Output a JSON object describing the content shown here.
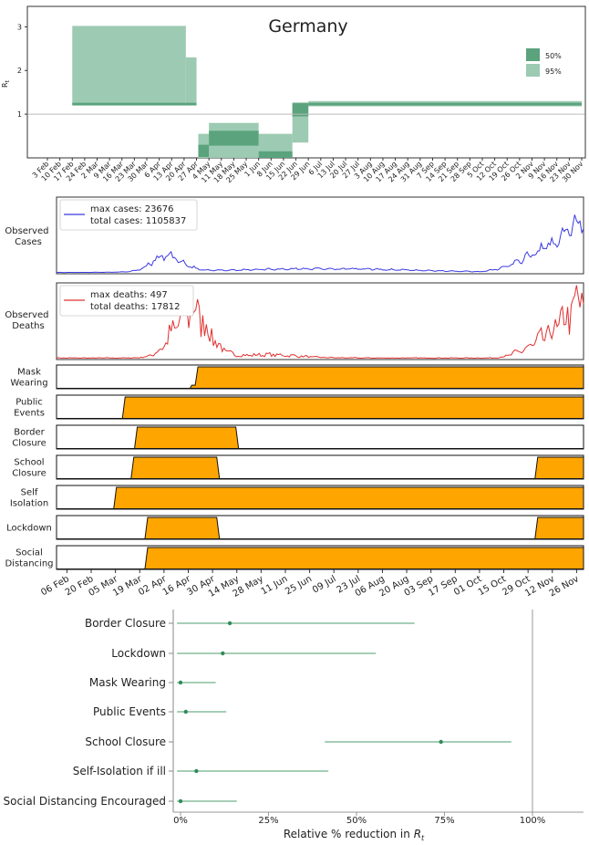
{
  "chart_data": [
    {
      "id": "rt",
      "type": "area",
      "title": "Germany",
      "ylabel": "R_t",
      "ylim": [
        0,
        3.3
      ],
      "yticks": [
        "1",
        "2",
        "3"
      ],
      "ytick_values": [
        1,
        2,
        3
      ],
      "grid": "horizontal line at 1",
      "legend_position": "top-right",
      "legend": [
        {
          "label": "50%",
          "color": "#5aa37d"
        },
        {
          "label": "95%",
          "color": "#9ccab2"
        }
      ],
      "x": [
        "3 Feb",
        "10 Feb",
        "17 Feb",
        "24 Feb",
        "2 Mar",
        "9 Mar",
        "16 Mar",
        "23 Mar",
        "30 Mar",
        "6 Apr",
        "13 Apr",
        "20 Apr",
        "27 Apr",
        "4 May",
        "11 May",
        "18 May",
        "25 May",
        "1 Jun",
        "8 Jun",
        "15 Jun",
        "22 Jun",
        "29 Jun",
        "6 Jul",
        "13 Jul",
        "20 Jul",
        "27 Jul",
        "3 Aug",
        "10 Aug",
        "17 Aug",
        "24 Aug",
        "31 Aug",
        "7 Sep",
        "14 Sep",
        "21 Sep",
        "28 Sep",
        "5 Oct",
        "12 Oct",
        "19 Oct",
        "26 Oct",
        "2 Nov",
        "9 Nov",
        "16 Nov",
        "23 Nov",
        "30 Nov"
      ],
      "segments_95": [
        {
          "start": "17 Feb",
          "end": "21 Apr",
          "lo": 1.22,
          "hi": 3.02
        },
        {
          "start": "21 Apr",
          "end": "27 Apr",
          "lo": 1.22,
          "hi": 2.3
        },
        {
          "start": "28 Apr",
          "end": "4 May",
          "lo": -0.2,
          "hi": 0.55
        },
        {
          "start": "4 May",
          "end": "1 Jun",
          "lo": -0.3,
          "hi": 0.8
        },
        {
          "start": "1 Jun",
          "end": "20 Jun",
          "lo": -0.3,
          "hi": 0.55
        },
        {
          "start": "20 Jun",
          "end": "29 Jun",
          "lo": 0.35,
          "hi": 1.27
        },
        {
          "start": "29 Jun",
          "end": "30 Nov",
          "lo": 1.18,
          "hi": 1.3
        }
      ],
      "segments_50": [
        {
          "start": "17 Feb",
          "end": "27 Apr",
          "lo": 1.2,
          "hi": 1.26
        },
        {
          "start": "28 Apr",
          "end": "4 May",
          "lo": 0.02,
          "hi": 0.3
        },
        {
          "start": "4 May",
          "end": "1 Jun",
          "lo": 0.28,
          "hi": 0.62
        },
        {
          "start": "1 Jun",
          "end": "20 Jun",
          "lo": -0.1,
          "hi": 0.15
        },
        {
          "start": "20 Jun",
          "end": "29 Jun",
          "lo": 0.95,
          "hi": 1.25
        },
        {
          "start": "29 Jun",
          "end": "30 Nov",
          "lo": 1.2,
          "hi": 1.26
        }
      ]
    },
    {
      "id": "cases",
      "type": "line",
      "ylabel": "Observed\nCases",
      "color": "#3a3ae0",
      "legend": [
        "max cases: 23676",
        "total cases: 1105837"
      ],
      "max": 23676,
      "total": 1105837
    },
    {
      "id": "deaths",
      "type": "line",
      "ylabel": "Observed\nDeaths",
      "color": "#e03030",
      "legend": [
        "max deaths: 497",
        "total deaths: 17812"
      ],
      "max": 497,
      "total": 17812
    },
    {
      "id": "npis",
      "type": "area",
      "color": "#ffa500",
      "x_start": "2020-01-31",
      "x_end": "2020-11-30",
      "xticks": [
        "06 Feb",
        "20 Feb",
        "05 Mar",
        "19 Mar",
        "02 Apr",
        "16 Apr",
        "30 Apr",
        "14 May",
        "28 May",
        "11 Jun",
        "25 Jun",
        "09 Jul",
        "23 Jul",
        "06 Aug",
        "20 Aug",
        "03 Sep",
        "17 Sep",
        "01 Oct",
        "15 Oct",
        "29 Oct",
        "12 Nov",
        "26 Nov"
      ],
      "rows": [
        {
          "label": "Mask\nWearing",
          "periods": [
            {
              "on": "2020-04-20",
              "off": null,
              "level": 1,
              "pre_level": 0.15,
              "pre_on": "2020-04-17"
            }
          ]
        },
        {
          "label": "Public\nEvents",
          "periods": [
            {
              "on": "2020-03-09",
              "off": null,
              "level": 1
            }
          ]
        },
        {
          "label": "Border\nClosure",
          "periods": [
            {
              "on": "2020-03-16",
              "off": "2020-05-15",
              "level": 1
            }
          ]
        },
        {
          "label": "School\nClosure",
          "periods": [
            {
              "on": "2020-03-14",
              "off": "2020-05-04",
              "level": 1
            },
            {
              "on": "2020-11-02",
              "off": null,
              "level": 1
            }
          ]
        },
        {
          "label": "Self\nIsolation",
          "periods": [
            {
              "on": "2020-03-04",
              "off": null,
              "level": 1
            }
          ]
        },
        {
          "label": "Lockdown",
          "periods": [
            {
              "on": "2020-03-22",
              "off": "2020-05-04",
              "level": 1
            },
            {
              "on": "2020-11-02",
              "off": null,
              "level": 1
            }
          ]
        },
        {
          "label": "Social\nDistancing",
          "periods": [
            {
              "on": "2020-03-22",
              "off": null,
              "level": 1
            }
          ]
        }
      ]
    },
    {
      "id": "effects",
      "type": "scatter",
      "xlabel": "Relative  % reduction  in R_t",
      "xlim": [
        -0.01,
        1.15
      ],
      "xticks": [
        "0%",
        "25%",
        "50%",
        "75%",
        "100%"
      ],
      "xtick_values": [
        0,
        0.25,
        0.5,
        0.75,
        1.0
      ],
      "reference_line": 1.0,
      "color": "#2e8b57",
      "categories": [
        "Border Closure",
        "Lockdown",
        "Mask Wearing",
        "Public Events",
        "School Closure",
        "Self-Isolation  if ill",
        "Social Distancing Encouraged"
      ],
      "median": [
        0.14,
        0.12,
        0.0,
        0.015,
        0.74,
        0.045,
        0.0
      ],
      "lo": [
        -0.01,
        -0.01,
        -0.01,
        -0.01,
        0.41,
        -0.01,
        -0.01
      ],
      "hi": [
        0.665,
        0.555,
        0.1,
        0.13,
        0.94,
        0.42,
        0.16
      ]
    }
  ]
}
